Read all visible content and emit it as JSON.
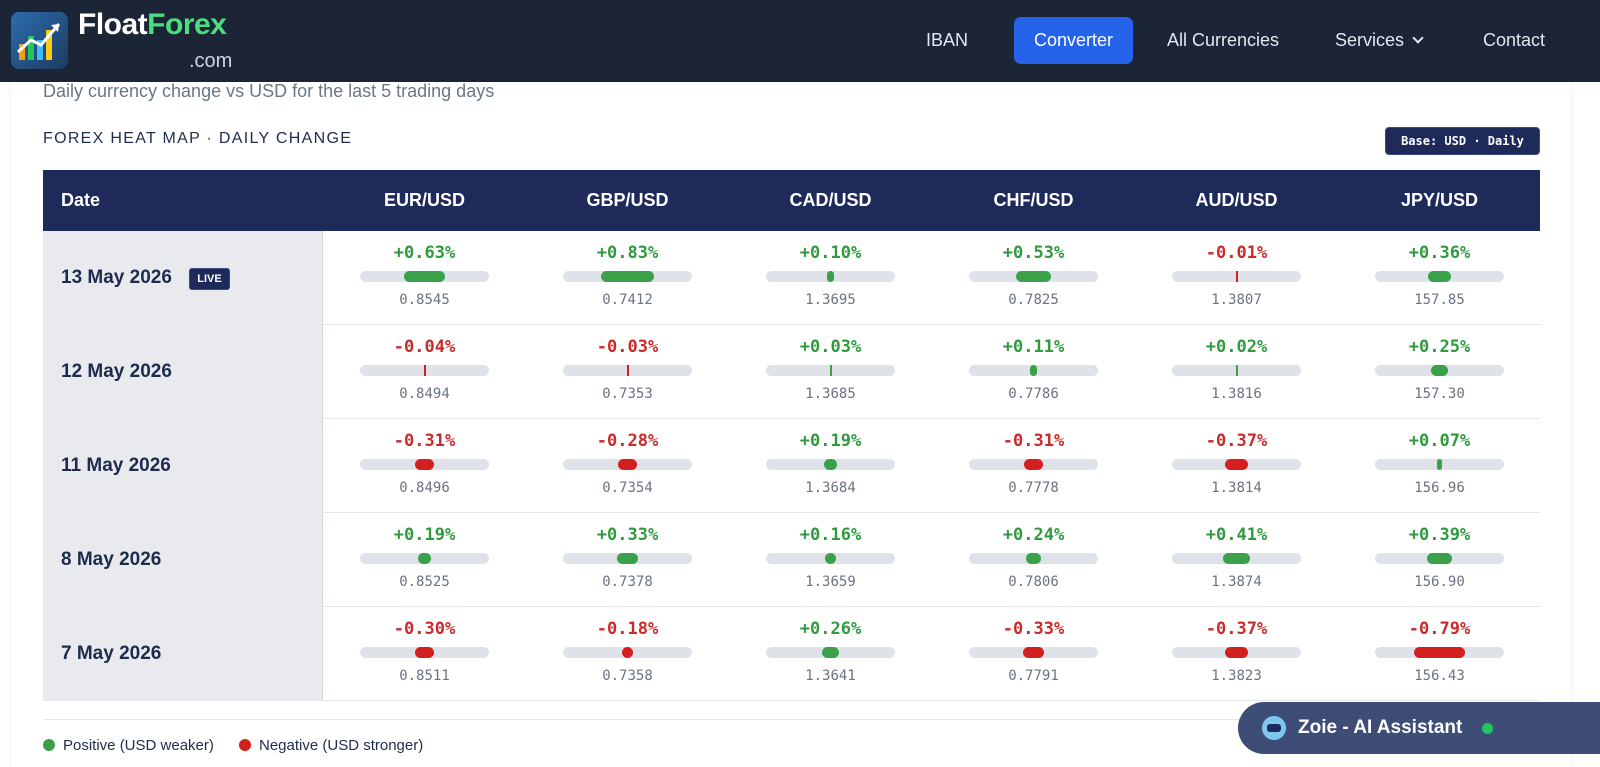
{
  "nav": {
    "brand_main": "Float",
    "brand_accent": "Forex",
    "brand_suffix": ".com",
    "links": [
      "IBAN",
      "Converter",
      "All Currencies",
      "Services",
      "Contact"
    ],
    "active": "Converter"
  },
  "page": {
    "subtitle": "Daily currency change vs USD for the last 5 trading days",
    "section_title": "FOREX HEAT MAP · DAILY CHANGE",
    "base_badge": "Base: USD · Daily"
  },
  "table": {
    "date_header": "Date",
    "columns": [
      "EUR/USD",
      "GBP/USD",
      "CAD/USD",
      "CHF/USD",
      "AUD/USD",
      "JPY/USD"
    ],
    "live_label": "LIVE",
    "rows": [
      {
        "date": "13 May 2026",
        "live": true,
        "changes": [
          "+0.63%",
          "+0.83%",
          "+0.10%",
          "+0.53%",
          "-0.01%",
          "+0.36%"
        ],
        "values": [
          0.63,
          0.83,
          0.1,
          0.53,
          -0.01,
          0.36
        ],
        "rates": [
          "0.8545",
          "0.7412",
          "1.3695",
          "0.7825",
          "1.3807",
          "157.85"
        ]
      },
      {
        "date": "12 May 2026",
        "live": false,
        "changes": [
          "-0.04%",
          "-0.03%",
          "+0.03%",
          "+0.11%",
          "+0.02%",
          "+0.25%"
        ],
        "values": [
          -0.04,
          -0.03,
          0.03,
          0.11,
          0.02,
          0.25
        ],
        "rates": [
          "0.8494",
          "0.7353",
          "1.3685",
          "0.7786",
          "1.3816",
          "157.30"
        ]
      },
      {
        "date": "11 May 2026",
        "live": false,
        "changes": [
          "-0.31%",
          "-0.28%",
          "+0.19%",
          "-0.31%",
          "-0.37%",
          "+0.07%"
        ],
        "values": [
          -0.31,
          -0.28,
          0.19,
          -0.31,
          -0.37,
          0.07
        ],
        "rates": [
          "0.8496",
          "0.7354",
          "1.3684",
          "0.7778",
          "1.3814",
          "156.96"
        ]
      },
      {
        "date": "8 May 2026",
        "live": false,
        "changes": [
          "+0.19%",
          "+0.33%",
          "+0.16%",
          "+0.24%",
          "+0.41%",
          "+0.39%"
        ],
        "values": [
          0.19,
          0.33,
          0.16,
          0.24,
          0.41,
          0.39
        ],
        "rates": [
          "0.8525",
          "0.7378",
          "1.3659",
          "0.7806",
          "1.3874",
          "156.90"
        ]
      },
      {
        "date": "7 May 2026",
        "live": false,
        "changes": [
          "-0.30%",
          "-0.18%",
          "+0.26%",
          "-0.33%",
          "-0.37%",
          "-0.79%"
        ],
        "values": [
          -0.3,
          -0.18,
          0.26,
          -0.33,
          -0.37,
          -0.79
        ],
        "rates": [
          "0.8511",
          "0.7358",
          "1.3641",
          "0.7791",
          "1.3823",
          "156.43"
        ]
      }
    ]
  },
  "legend": {
    "positive": "Positive (USD weaker)",
    "negative": "Negative (USD stronger)",
    "positive_color": "#3aa14a",
    "negative_color": "#d41f1f"
  },
  "assistant": {
    "label": "Zoie - AI Assistant",
    "icon": "robot-icon",
    "status_color": "#22c55e"
  }
}
